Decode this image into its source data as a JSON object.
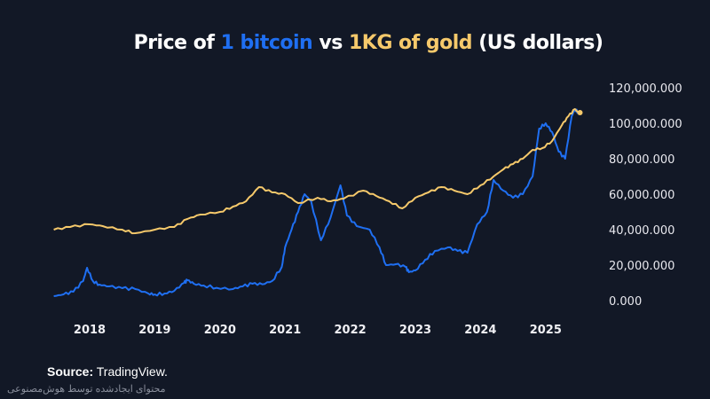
{
  "title": {
    "prefix": "Price of ",
    "btc": "1 bitcoin",
    "mid": " vs ",
    "gold": "1KG of gold",
    "suffix": " (US dollars)"
  },
  "source": {
    "label": "Source:",
    "value": " TradingView."
  },
  "watermark_note": "محتوای ایجادشده توسط هوش‌مصنوعی",
  "chart_data": {
    "type": "line",
    "title": "Price of 1 bitcoin vs 1KG of gold (US dollars)",
    "xlabel": "",
    "ylabel": "",
    "ylim": [
      0,
      120000
    ],
    "xlim": [
      2017.2,
      2025.9
    ],
    "y_ticks": [
      {
        "v": 120000,
        "label": "120,000.000"
      },
      {
        "v": 100000,
        "label": "100,000.000"
      },
      {
        "v": 80000,
        "label": "80,000.000"
      },
      {
        "v": 60000,
        "label": "60,000.000"
      },
      {
        "v": 40000,
        "label": "40,000.000"
      },
      {
        "v": 20000,
        "label": "20,000.000"
      },
      {
        "v": 0,
        "label": "0.000"
      }
    ],
    "x_ticks": [
      {
        "v": 2018,
        "label": "2018"
      },
      {
        "v": 2019,
        "label": "2019"
      },
      {
        "v": 2020,
        "label": "2020"
      },
      {
        "v": 2021,
        "label": "2021"
      },
      {
        "v": 2022,
        "label": "2022"
      },
      {
        "v": 2023,
        "label": "2023"
      },
      {
        "v": 2024,
        "label": "2024"
      },
      {
        "v": 2025,
        "label": "2025"
      }
    ],
    "grid": false,
    "series": [
      {
        "name": "1 bitcoin",
        "color": "#1f6ff2",
        "x": [
          2017.45,
          2017.6,
          2017.75,
          2017.9,
          2017.96,
          2018.05,
          2018.15,
          2018.3,
          2018.5,
          2018.7,
          2018.9,
          2019.0,
          2019.15,
          2019.3,
          2019.45,
          2019.5,
          2019.6,
          2019.75,
          2019.95,
          2020.2,
          2020.35,
          2020.5,
          2020.65,
          2020.8,
          2020.95,
          2021.0,
          2021.1,
          2021.2,
          2021.3,
          2021.4,
          2021.55,
          2021.7,
          2021.85,
          2021.95,
          2022.1,
          2022.3,
          2022.45,
          2022.55,
          2022.7,
          2022.85,
          2022.9,
          2023.0,
          2023.15,
          2023.3,
          2023.5,
          2023.65,
          2023.8,
          2023.95,
          2024.1,
          2024.2,
          2024.35,
          2024.5,
          2024.65,
          2024.8,
          2024.9,
          2025.0,
          2025.1,
          2025.2,
          2025.3,
          2025.4,
          2025.45,
          2025.5
        ],
        "values": [
          2500,
          3500,
          5000,
          11000,
          18500,
          11000,
          9000,
          8000,
          7000,
          6500,
          4000,
          3500,
          4000,
          5500,
          10000,
          11500,
          9500,
          8500,
          7200,
          6500,
          8000,
          9500,
          9200,
          11000,
          19000,
          30000,
          40000,
          50000,
          60000,
          56000,
          34000,
          47000,
          65000,
          48000,
          42000,
          40000,
          30000,
          20000,
          20500,
          19000,
          16000,
          17000,
          23000,
          28000,
          30000,
          28000,
          27000,
          43000,
          50000,
          68000,
          62000,
          58000,
          60000,
          70000,
          97000,
          100000,
          95000,
          84000,
          80000,
          104000,
          108000,
          106000
        ]
      },
      {
        "name": "1KG of gold",
        "color": "#f6c96b",
        "x": [
          2017.45,
          2017.7,
          2018.0,
          2018.2,
          2018.5,
          2018.7,
          2019.0,
          2019.3,
          2019.5,
          2019.7,
          2020.0,
          2020.2,
          2020.4,
          2020.6,
          2020.8,
          2021.0,
          2021.2,
          2021.5,
          2021.7,
          2021.9,
          2022.2,
          2022.4,
          2022.6,
          2022.8,
          2023.0,
          2023.2,
          2023.4,
          2023.6,
          2023.8,
          2024.0,
          2024.2,
          2024.35,
          2024.5,
          2024.65,
          2024.8,
          2024.95,
          2025.1,
          2025.25,
          2025.35,
          2025.45,
          2025.5
        ],
        "values": [
          40000,
          41500,
          43000,
          42000,
          40000,
          38000,
          40000,
          41500,
          46000,
          48500,
          50000,
          53000,
          56000,
          64000,
          61000,
          60000,
          55000,
          58000,
          56000,
          57500,
          62000,
          59000,
          56000,
          52000,
          58000,
          61000,
          64000,
          62000,
          60000,
          65000,
          70000,
          74000,
          77000,
          80000,
          85000,
          86000,
          90000,
          99000,
          104000,
          108000,
          106000
        ]
      }
    ]
  }
}
